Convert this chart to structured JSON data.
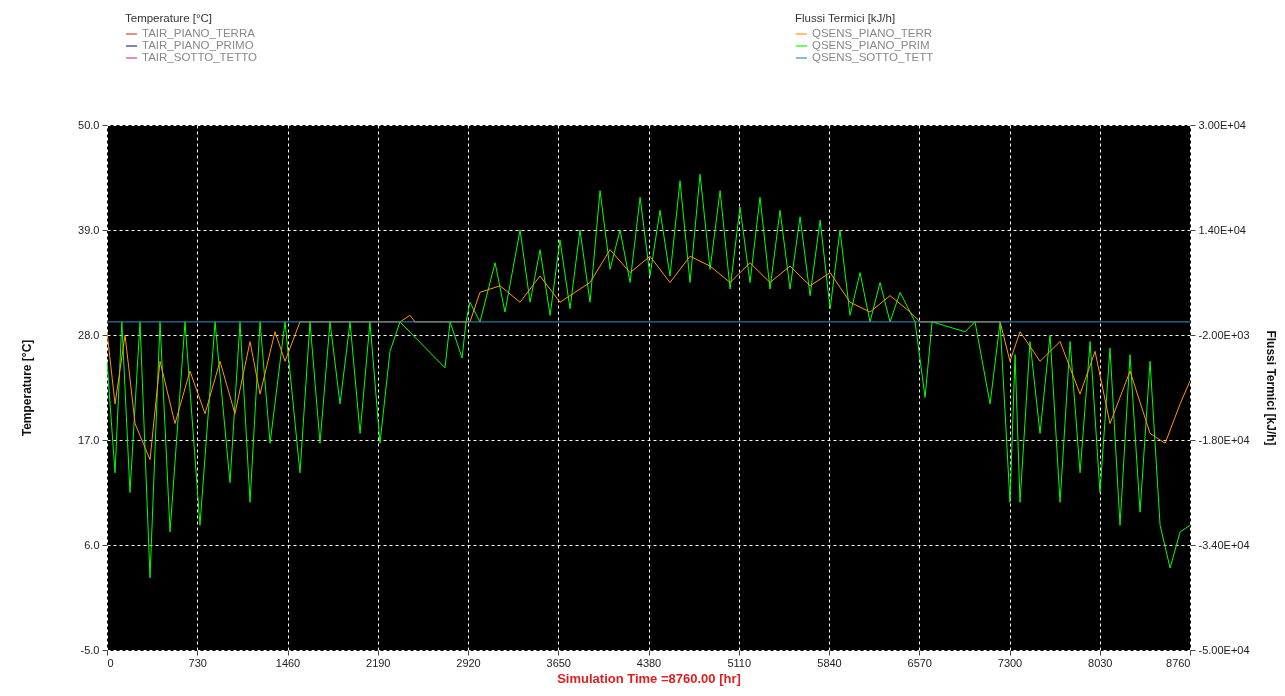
{
  "chart_data": {
    "type": "line",
    "xlabel": "Simulation Time =8760.00 [hr]",
    "ylabel": "Temperature [°C]",
    "y2label": "Flussi Termici [kJ/h]",
    "xlim": [
      0,
      8760
    ],
    "xticks": [
      0,
      730,
      1460,
      2190,
      2920,
      3650,
      4380,
      5110,
      5840,
      6570,
      7300,
      8030,
      8760
    ],
    "ylim": [
      -5,
      50
    ],
    "yticks": [
      {
        "value": 50,
        "label": "50.0"
      },
      {
        "value": 39,
        "label": "39.0"
      },
      {
        "value": 28,
        "label": "28.0"
      },
      {
        "value": 17,
        "label": "17.0"
      },
      {
        "value": 6,
        "label": "6.0"
      },
      {
        "value": -5,
        "label": "-5.0"
      }
    ],
    "y2lim": [
      -50000,
      30000
    ],
    "y2ticks": [
      {
        "value": 30000,
        "label": "3.00E+04"
      },
      {
        "value": 14000,
        "label": "1.40E+04"
      },
      {
        "value": -2000,
        "label": "-2.00E+03"
      },
      {
        "value": -18000,
        "label": "-1.80E+04"
      },
      {
        "value": -34000,
        "label": "-3.40E+04"
      },
      {
        "value": -50000,
        "label": "-5.00E+04"
      }
    ],
    "grid": true,
    "legend": "top",
    "series": [
      {
        "name": "TAIR_PIANO_TERRA",
        "color": "#e03c3c"
      },
      {
        "name": "TAIR_PIANO_PRIMO",
        "color": "#2e2e8a"
      },
      {
        "name": "TAIR_SOTTO_TETTO",
        "color": "#d23ca0"
      },
      {
        "name": "QSENS_PIANO_TERR",
        "color": "#ff9900",
        "axis": "y2",
        "x": [
          0,
          65,
          146,
          227,
          348,
          429,
          550,
          671,
          793,
          914,
          1035,
          1157,
          1238,
          1359,
          1440,
          1561,
          2370,
          2451,
          2491,
          2936,
          3017,
          3179,
          3341,
          3503,
          3664,
          3907,
          4069,
          4231,
          4392,
          4554,
          4716,
          4878,
          5040,
          5201,
          5363,
          5525,
          5687,
          5849,
          6010,
          6172,
          6334,
          6496,
          6577,
          7224,
          7304,
          7385,
          7547,
          7709,
          7871,
          7992,
          8113,
          8275,
          8437,
          8559,
          8680,
          8760
        ],
        "values": [
          -1500,
          -12500,
          -2000,
          -15500,
          -21000,
          -6000,
          -15500,
          -7500,
          -14000,
          -6000,
          -14000,
          -3000,
          -11000,
          -1500,
          -6000,
          0,
          0,
          1000,
          0,
          0,
          4500,
          5500,
          3000,
          7000,
          3000,
          6000,
          11000,
          7500,
          10000,
          6000,
          10000,
          8500,
          6000,
          9000,
          6000,
          8500,
          5500,
          7500,
          3000,
          1500,
          4000,
          1500,
          0,
          0,
          -6000,
          -1500,
          -6000,
          -3000,
          -11000,
          -4500,
          -15500,
          -7500,
          -17000,
          -18500,
          -12500,
          -9000
        ]
      },
      {
        "name": "QSENS_PIANO_PRIM",
        "color": "#00ff00",
        "axis": "y2",
        "x": [
          0,
          65,
          120,
          186,
          267,
          348,
          429,
          510,
          631,
          752,
          874,
          995,
          1076,
          1157,
          1238,
          1319,
          1440,
          1561,
          1642,
          1723,
          1804,
          1885,
          1966,
          2047,
          2127,
          2208,
          2289,
          2370,
          2734,
          2775,
          2872,
          2904,
          2936,
          3017,
          3139,
          3219,
          3341,
          3422,
          3503,
          3584,
          3664,
          3745,
          3826,
          3907,
          3988,
          4069,
          4150,
          4231,
          4312,
          4392,
          4473,
          4554,
          4635,
          4716,
          4797,
          4878,
          4959,
          5040,
          5120,
          5201,
          5282,
          5363,
          5444,
          5525,
          5606,
          5687,
          5768,
          5849,
          5929,
          6010,
          6091,
          6172,
          6253,
          6334,
          6415,
          6536,
          6617,
          6674,
          6940,
          7021,
          7143,
          7224,
          7304,
          7345,
          7385,
          7466,
          7547,
          7628,
          7709,
          7790,
          7871,
          7952,
          8032,
          8113,
          8194,
          8275,
          8356,
          8437,
          8518,
          8599,
          8680,
          8760
        ],
        "values": [
          -6000,
          -23000,
          0,
          -26000,
          0,
          -39000,
          0,
          -32000,
          0,
          -31000,
          0,
          -24500,
          0,
          -27500,
          0,
          -18500,
          0,
          -23000,
          0,
          -18500,
          0,
          -12500,
          0,
          -17000,
          0,
          -18500,
          -4500,
          0,
          -7000,
          0,
          -5500,
          0,
          3000,
          0,
          9000,
          1500,
          14000,
          3000,
          11000,
          1000,
          12500,
          2000,
          14000,
          3000,
          20000,
          8000,
          14000,
          6000,
          19000,
          7000,
          17000,
          7000,
          21500,
          6000,
          22500,
          8000,
          20000,
          5000,
          17500,
          6000,
          19000,
          5000,
          17000,
          5000,
          16000,
          4000,
          15500,
          2000,
          14000,
          1000,
          7500,
          0,
          6000,
          0,
          4500,
          0,
          -11500,
          0,
          -1500,
          0,
          -12500,
          0,
          -27500,
          -5000,
          -27500,
          -3000,
          -17000,
          -2000,
          -27500,
          -3000,
          -23000,
          -3000,
          -26000,
          -4000,
          -31000,
          -5000,
          -29000,
          -6000,
          -31000,
          -37500,
          -32000,
          -31000
        ]
      },
      {
        "name": "QSENS_SOTTO_TETT",
        "color": "#3a8fc0",
        "axis": "y2",
        "x": [
          0,
          8760
        ],
        "values": [
          0,
          0
        ]
      }
    ]
  }
}
